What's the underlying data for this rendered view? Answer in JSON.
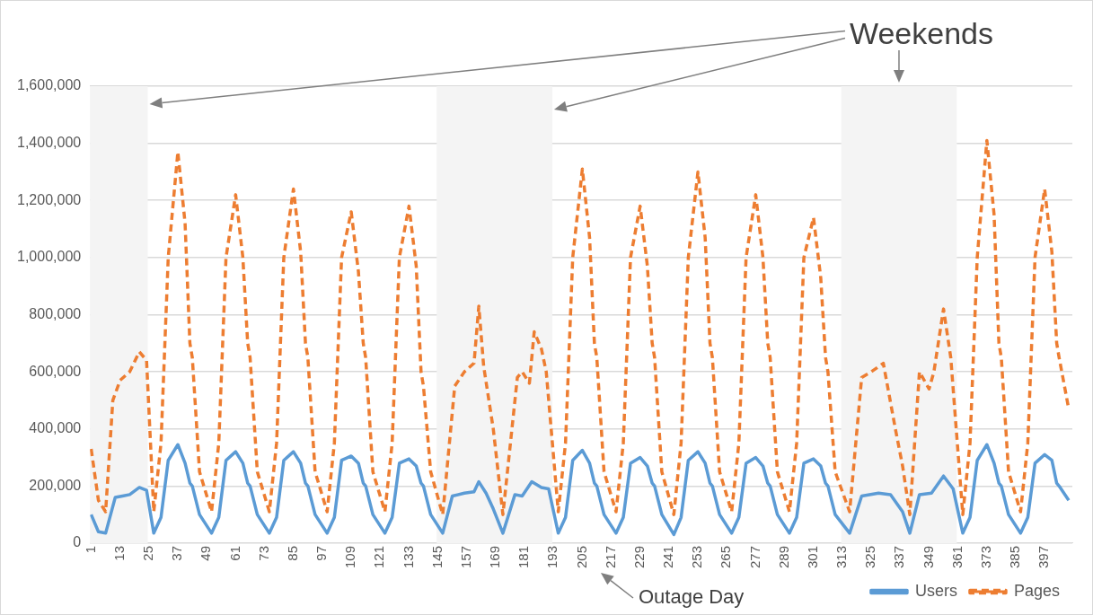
{
  "chart_data": {
    "type": "line",
    "annotations": [
      "Weekends",
      "Outage Day"
    ],
    "xlim": [
      0.5,
      408.5
    ],
    "xticks": [
      1,
      13,
      25,
      37,
      49,
      61,
      73,
      85,
      97,
      109,
      121,
      133,
      145,
      157,
      169,
      181,
      193,
      205,
      217,
      229,
      241,
      253,
      265,
      277,
      289,
      301,
      313,
      325,
      337,
      349,
      361,
      373,
      385,
      397
    ],
    "ylim": [
      0,
      1600000
    ],
    "yticks": [
      {
        "value": 0,
        "label": "0"
      },
      {
        "value": 200000,
        "label": "200,000"
      },
      {
        "value": 400000,
        "label": "400,000"
      },
      {
        "value": 600000,
        "label": "600,000"
      },
      {
        "value": 800000,
        "label": "800,000"
      },
      {
        "value": 1000000,
        "label": "1,000,000"
      },
      {
        "value": 1200000,
        "label": "1,200,000"
      },
      {
        "value": 1400000,
        "label": "1,400,000"
      },
      {
        "value": 1600000,
        "label": "1,600,000"
      }
    ],
    "grid": "y",
    "legend": "bottom right",
    "bands": [
      {
        "axis": "x",
        "from": 0.5,
        "to": 24.5,
        "color": "#f4f4f4"
      },
      {
        "axis": "x",
        "from": 144.5,
        "to": 192.5,
        "color": "#f4f4f4"
      },
      {
        "axis": "x",
        "from": 312.5,
        "to": 360.5,
        "color": "#f4f4f4"
      }
    ],
    "series": [
      {
        "name": "Users",
        "color": "#5b9bd5",
        "line_style": "solid",
        "x": [
          1,
          4,
          7,
          11,
          14,
          17,
          21,
          24,
          27,
          30,
          33,
          37,
          40,
          42,
          43,
          46,
          51,
          54,
          57,
          61,
          64,
          66,
          67,
          70,
          75,
          78,
          81,
          85,
          88,
          90,
          91,
          94,
          99,
          102,
          105,
          109,
          112,
          114,
          115,
          118,
          123,
          126,
          129,
          133,
          136,
          138,
          139,
          142,
          147,
          151,
          156,
          160,
          162,
          165,
          168,
          172,
          177,
          180,
          184,
          188,
          191,
          195,
          198,
          201,
          205,
          208,
          210,
          211,
          214,
          219,
          222,
          225,
          229,
          232,
          234,
          235,
          238,
          243,
          246,
          249,
          253,
          256,
          258,
          259,
          262,
          267,
          270,
          273,
          277,
          280,
          282,
          283,
          286,
          291,
          294,
          297,
          301,
          304,
          306,
          307,
          310,
          316,
          321,
          328,
          333,
          338,
          341,
          345,
          350,
          355,
          359,
          363,
          366,
          369,
          373,
          376,
          378,
          379,
          382,
          387,
          390,
          393,
          397,
          400,
          402,
          403,
          407
        ],
        "values": [
          100000,
          40000,
          35000,
          160000,
          165000,
          170000,
          195000,
          185000,
          35000,
          90000,
          290000,
          345000,
          280000,
          210000,
          200000,
          100000,
          35000,
          90000,
          290000,
          320000,
          280000,
          210000,
          200000,
          100000,
          35000,
          90000,
          290000,
          320000,
          280000,
          210000,
          200000,
          100000,
          35000,
          90000,
          290000,
          305000,
          280000,
          210000,
          200000,
          100000,
          35000,
          90000,
          280000,
          295000,
          270000,
          210000,
          200000,
          100000,
          35000,
          165000,
          175000,
          180000,
          215000,
          175000,
          120000,
          35000,
          170000,
          165000,
          215000,
          195000,
          190000,
          35000,
          90000,
          290000,
          325000,
          280000,
          210000,
          200000,
          100000,
          35000,
          90000,
          280000,
          300000,
          270000,
          210000,
          200000,
          100000,
          30000,
          90000,
          290000,
          320000,
          280000,
          210000,
          200000,
          100000,
          35000,
          90000,
          280000,
          300000,
          270000,
          210000,
          200000,
          100000,
          35000,
          90000,
          280000,
          295000,
          270000,
          210000,
          200000,
          100000,
          35000,
          165000,
          175000,
          170000,
          110000,
          35000,
          170000,
          175000,
          235000,
          190000,
          35000,
          90000,
          290000,
          345000,
          280000,
          210000,
          200000,
          100000,
          35000,
          90000,
          280000,
          310000,
          290000,
          210000,
          200000,
          150000
        ]
      },
      {
        "name": "Pages",
        "color": "#ed7d31",
        "line_style": "dashed",
        "x": [
          1,
          4,
          7,
          10,
          13,
          17,
          21,
          24,
          27,
          30,
          33,
          37,
          40,
          42,
          43,
          46,
          51,
          54,
          57,
          61,
          64,
          66,
          67,
          70,
          75,
          78,
          81,
          85,
          88,
          90,
          91,
          94,
          99,
          102,
          105,
          109,
          112,
          114,
          115,
          118,
          123,
          126,
          129,
          133,
          136,
          138,
          139,
          142,
          147,
          152,
          156,
          160,
          162,
          164,
          168,
          172,
          178,
          180,
          183,
          185,
          188,
          190,
          195,
          198,
          201,
          205,
          208,
          210,
          211,
          214,
          219,
          222,
          225,
          229,
          232,
          234,
          235,
          238,
          243,
          246,
          249,
          253,
          256,
          258,
          259,
          262,
          267,
          270,
          273,
          277,
          280,
          282,
          283,
          286,
          291,
          294,
          297,
          301,
          304,
          306,
          307,
          310,
          316,
          321,
          325,
          330,
          335,
          338,
          341,
          345,
          349,
          351,
          355,
          358,
          363,
          366,
          369,
          373,
          376,
          378,
          379,
          382,
          387,
          390,
          393,
          397,
          400,
          402,
          403,
          407
        ],
        "values": [
          330000,
          150000,
          110000,
          500000,
          570000,
          600000,
          670000,
          640000,
          110000,
          350000,
          1000000,
          1370000,
          1120000,
          700000,
          650000,
          250000,
          110000,
          350000,
          1000000,
          1220000,
          1000000,
          700000,
          650000,
          250000,
          110000,
          350000,
          1000000,
          1240000,
          1020000,
          700000,
          650000,
          250000,
          110000,
          350000,
          1000000,
          1160000,
          950000,
          700000,
          650000,
          250000,
          110000,
          350000,
          1000000,
          1180000,
          970000,
          600000,
          550000,
          250000,
          100000,
          550000,
          600000,
          630000,
          830000,
          620000,
          400000,
          100000,
          580000,
          600000,
          560000,
          740000,
          680000,
          600000,
          110000,
          350000,
          1000000,
          1310000,
          1070000,
          700000,
          650000,
          250000,
          110000,
          350000,
          1000000,
          1180000,
          970000,
          700000,
          650000,
          250000,
          100000,
          350000,
          1000000,
          1300000,
          1070000,
          700000,
          650000,
          250000,
          110000,
          350000,
          1000000,
          1220000,
          1000000,
          700000,
          650000,
          250000,
          110000,
          350000,
          1000000,
          1140000,
          930000,
          650000,
          600000,
          250000,
          110000,
          580000,
          600000,
          630000,
          400000,
          270000,
          100000,
          600000,
          540000,
          600000,
          820000,
          650000,
          100000,
          350000,
          1000000,
          1410000,
          1150000,
          700000,
          650000,
          250000,
          110000,
          350000,
          1000000,
          1240000,
          1020000,
          700000,
          650000,
          470000
        ]
      }
    ]
  }
}
